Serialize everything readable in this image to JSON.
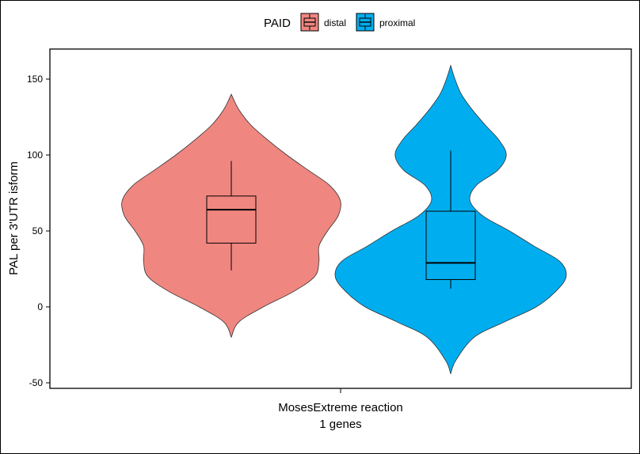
{
  "chart_data": {
    "type": "violin",
    "title": "",
    "xlabel": "MosesExtreme reaction",
    "xlabel_line2": "1 genes",
    "ylabel": "PAL per 3'UTR isform",
    "ylim": [
      -50,
      160
    ],
    "yticks": [
      -50,
      0,
      50,
      100,
      150
    ],
    "grid": false,
    "legend": {
      "title": "PAID",
      "position": "top",
      "entries": [
        "distal",
        "proximal"
      ]
    },
    "categories": [
      "MosesExtreme reaction"
    ],
    "series": [
      {
        "name": "distal",
        "color": "#F08680",
        "min": -20,
        "max": 140,
        "box": {
          "q1": 42,
          "median": 64,
          "q3": 73,
          "whisker_low": 24,
          "whisker_high": 96
        },
        "density": [
          [
            -20,
            0.0
          ],
          [
            -10,
            0.07
          ],
          [
            0,
            0.3
          ],
          [
            10,
            0.58
          ],
          [
            20,
            0.78
          ],
          [
            30,
            0.82
          ],
          [
            40,
            0.82
          ],
          [
            50,
            0.9
          ],
          [
            60,
            1.0
          ],
          [
            70,
            1.02
          ],
          [
            80,
            0.92
          ],
          [
            90,
            0.72
          ],
          [
            100,
            0.52
          ],
          [
            110,
            0.34
          ],
          [
            120,
            0.18
          ],
          [
            130,
            0.07
          ],
          [
            140,
            0.0
          ]
        ]
      },
      {
        "name": "proximal",
        "color": "#00AEEF",
        "min": -44,
        "max": 159,
        "box": {
          "q1": 18,
          "median": 29,
          "q3": 63,
          "whisker_low": 12,
          "whisker_high": 103
        },
        "density": [
          [
            -44,
            0.0
          ],
          [
            -35,
            0.05
          ],
          [
            -20,
            0.22
          ],
          [
            -10,
            0.5
          ],
          [
            0,
            0.8
          ],
          [
            10,
            0.98
          ],
          [
            20,
            1.08
          ],
          [
            30,
            1.02
          ],
          [
            40,
            0.78
          ],
          [
            50,
            0.55
          ],
          [
            60,
            0.3
          ],
          [
            70,
            0.18
          ],
          [
            80,
            0.24
          ],
          [
            90,
            0.44
          ],
          [
            100,
            0.52
          ],
          [
            110,
            0.45
          ],
          [
            120,
            0.32
          ],
          [
            130,
            0.2
          ],
          [
            140,
            0.1
          ],
          [
            150,
            0.04
          ],
          [
            159,
            0.0
          ]
        ]
      }
    ]
  }
}
